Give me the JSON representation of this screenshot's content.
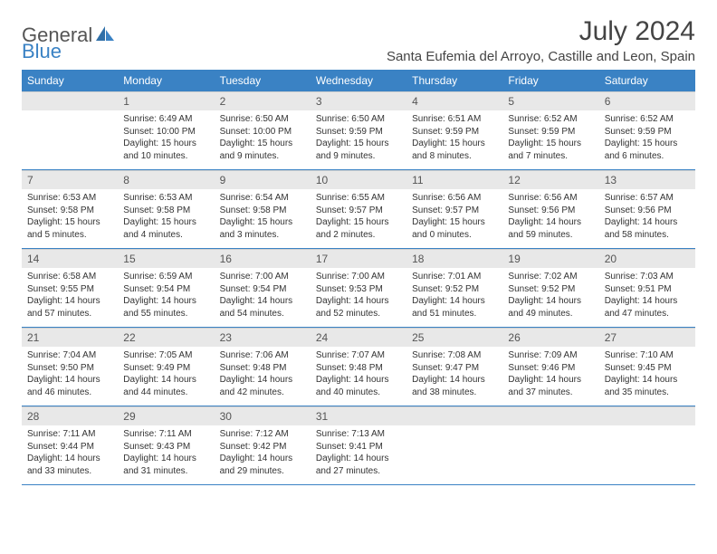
{
  "logo": {
    "text1": "General",
    "text2": "Blue"
  },
  "title": "July 2024",
  "location": "Santa Eufemia del Arroyo, Castille and Leon, Spain",
  "daynames": [
    "Sunday",
    "Monday",
    "Tuesday",
    "Wednesday",
    "Thursday",
    "Friday",
    "Saturday"
  ],
  "colors": {
    "header_bg": "#3a82c4",
    "daynum_bg": "#e8e8e8",
    "divider": "#3a82c4",
    "text": "#333333"
  },
  "weeks": [
    {
      "nums": [
        "",
        "1",
        "2",
        "3",
        "4",
        "5",
        "6"
      ],
      "cells": [
        {
          "lines": []
        },
        {
          "lines": [
            "Sunrise: 6:49 AM",
            "Sunset: 10:00 PM",
            "Daylight: 15 hours",
            "and 10 minutes."
          ]
        },
        {
          "lines": [
            "Sunrise: 6:50 AM",
            "Sunset: 10:00 PM",
            "Daylight: 15 hours",
            "and 9 minutes."
          ]
        },
        {
          "lines": [
            "Sunrise: 6:50 AM",
            "Sunset: 9:59 PM",
            "Daylight: 15 hours",
            "and 9 minutes."
          ]
        },
        {
          "lines": [
            "Sunrise: 6:51 AM",
            "Sunset: 9:59 PM",
            "Daylight: 15 hours",
            "and 8 minutes."
          ]
        },
        {
          "lines": [
            "Sunrise: 6:52 AM",
            "Sunset: 9:59 PM",
            "Daylight: 15 hours",
            "and 7 minutes."
          ]
        },
        {
          "lines": [
            "Sunrise: 6:52 AM",
            "Sunset: 9:59 PM",
            "Daylight: 15 hours",
            "and 6 minutes."
          ]
        }
      ]
    },
    {
      "nums": [
        "7",
        "8",
        "9",
        "10",
        "11",
        "12",
        "13"
      ],
      "cells": [
        {
          "lines": [
            "Sunrise: 6:53 AM",
            "Sunset: 9:58 PM",
            "Daylight: 15 hours",
            "and 5 minutes."
          ]
        },
        {
          "lines": [
            "Sunrise: 6:53 AM",
            "Sunset: 9:58 PM",
            "Daylight: 15 hours",
            "and 4 minutes."
          ]
        },
        {
          "lines": [
            "Sunrise: 6:54 AM",
            "Sunset: 9:58 PM",
            "Daylight: 15 hours",
            "and 3 minutes."
          ]
        },
        {
          "lines": [
            "Sunrise: 6:55 AM",
            "Sunset: 9:57 PM",
            "Daylight: 15 hours",
            "and 2 minutes."
          ]
        },
        {
          "lines": [
            "Sunrise: 6:56 AM",
            "Sunset: 9:57 PM",
            "Daylight: 15 hours",
            "and 0 minutes."
          ]
        },
        {
          "lines": [
            "Sunrise: 6:56 AM",
            "Sunset: 9:56 PM",
            "Daylight: 14 hours",
            "and 59 minutes."
          ]
        },
        {
          "lines": [
            "Sunrise: 6:57 AM",
            "Sunset: 9:56 PM",
            "Daylight: 14 hours",
            "and 58 minutes."
          ]
        }
      ]
    },
    {
      "nums": [
        "14",
        "15",
        "16",
        "17",
        "18",
        "19",
        "20"
      ],
      "cells": [
        {
          "lines": [
            "Sunrise: 6:58 AM",
            "Sunset: 9:55 PM",
            "Daylight: 14 hours",
            "and 57 minutes."
          ]
        },
        {
          "lines": [
            "Sunrise: 6:59 AM",
            "Sunset: 9:54 PM",
            "Daylight: 14 hours",
            "and 55 minutes."
          ]
        },
        {
          "lines": [
            "Sunrise: 7:00 AM",
            "Sunset: 9:54 PM",
            "Daylight: 14 hours",
            "and 54 minutes."
          ]
        },
        {
          "lines": [
            "Sunrise: 7:00 AM",
            "Sunset: 9:53 PM",
            "Daylight: 14 hours",
            "and 52 minutes."
          ]
        },
        {
          "lines": [
            "Sunrise: 7:01 AM",
            "Sunset: 9:52 PM",
            "Daylight: 14 hours",
            "and 51 minutes."
          ]
        },
        {
          "lines": [
            "Sunrise: 7:02 AM",
            "Sunset: 9:52 PM",
            "Daylight: 14 hours",
            "and 49 minutes."
          ]
        },
        {
          "lines": [
            "Sunrise: 7:03 AM",
            "Sunset: 9:51 PM",
            "Daylight: 14 hours",
            "and 47 minutes."
          ]
        }
      ]
    },
    {
      "nums": [
        "21",
        "22",
        "23",
        "24",
        "25",
        "26",
        "27"
      ],
      "cells": [
        {
          "lines": [
            "Sunrise: 7:04 AM",
            "Sunset: 9:50 PM",
            "Daylight: 14 hours",
            "and 46 minutes."
          ]
        },
        {
          "lines": [
            "Sunrise: 7:05 AM",
            "Sunset: 9:49 PM",
            "Daylight: 14 hours",
            "and 44 minutes."
          ]
        },
        {
          "lines": [
            "Sunrise: 7:06 AM",
            "Sunset: 9:48 PM",
            "Daylight: 14 hours",
            "and 42 minutes."
          ]
        },
        {
          "lines": [
            "Sunrise: 7:07 AM",
            "Sunset: 9:48 PM",
            "Daylight: 14 hours",
            "and 40 minutes."
          ]
        },
        {
          "lines": [
            "Sunrise: 7:08 AM",
            "Sunset: 9:47 PM",
            "Daylight: 14 hours",
            "and 38 minutes."
          ]
        },
        {
          "lines": [
            "Sunrise: 7:09 AM",
            "Sunset: 9:46 PM",
            "Daylight: 14 hours",
            "and 37 minutes."
          ]
        },
        {
          "lines": [
            "Sunrise: 7:10 AM",
            "Sunset: 9:45 PM",
            "Daylight: 14 hours",
            "and 35 minutes."
          ]
        }
      ]
    },
    {
      "nums": [
        "28",
        "29",
        "30",
        "31",
        "",
        "",
        ""
      ],
      "cells": [
        {
          "lines": [
            "Sunrise: 7:11 AM",
            "Sunset: 9:44 PM",
            "Daylight: 14 hours",
            "and 33 minutes."
          ]
        },
        {
          "lines": [
            "Sunrise: 7:11 AM",
            "Sunset: 9:43 PM",
            "Daylight: 14 hours",
            "and 31 minutes."
          ]
        },
        {
          "lines": [
            "Sunrise: 7:12 AM",
            "Sunset: 9:42 PM",
            "Daylight: 14 hours",
            "and 29 minutes."
          ]
        },
        {
          "lines": [
            "Sunrise: 7:13 AM",
            "Sunset: 9:41 PM",
            "Daylight: 14 hours",
            "and 27 minutes."
          ]
        },
        {
          "lines": []
        },
        {
          "lines": []
        },
        {
          "lines": []
        }
      ]
    }
  ]
}
